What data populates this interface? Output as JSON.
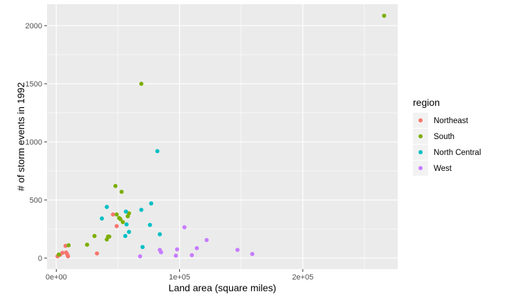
{
  "chart_data": {
    "type": "scatter",
    "xlabel": "Land area (square miles)",
    "ylabel": "# of storm events in 1992",
    "xlim": [
      -7500,
      277000
    ],
    "ylim": [
      -95,
      2185
    ],
    "x_ticks": [
      0,
      100000,
      200000
    ],
    "x_tick_labels": [
      "0e+00",
      "1e+05",
      "2e+05"
    ],
    "y_ticks": [
      0,
      500,
      1000,
      1500,
      2000
    ],
    "y_tick_labels": [
      "0",
      "500",
      "1000",
      "1500",
      "2000"
    ],
    "grid": true,
    "legend": {
      "title": "region",
      "position": "right",
      "entries": [
        "Northeast",
        "South",
        "North Central",
        "West"
      ]
    },
    "series": [
      {
        "name": "Northeast",
        "color": "#F8766D",
        "points": [
          [
            1000,
            15
          ],
          [
            3000,
            28
          ],
          [
            5000,
            45
          ],
          [
            7500,
            105
          ],
          [
            8000,
            48
          ],
          [
            9000,
            30
          ],
          [
            9500,
            15
          ],
          [
            33000,
            40
          ],
          [
            46000,
            375
          ],
          [
            49000,
            275
          ]
        ]
      },
      {
        "name": "South",
        "color": "#7CAE00",
        "points": [
          [
            2000,
            30
          ],
          [
            10000,
            110
          ],
          [
            25000,
            115
          ],
          [
            31000,
            190
          ],
          [
            41000,
            160
          ],
          [
            42000,
            185
          ],
          [
            43000,
            185
          ],
          [
            48000,
            620
          ],
          [
            49000,
            375
          ],
          [
            51000,
            345
          ],
          [
            52000,
            335
          ],
          [
            53000,
            570
          ],
          [
            54000,
            310
          ],
          [
            58000,
            360
          ],
          [
            59000,
            385
          ],
          [
            69000,
            1500
          ],
          [
            266000,
            2085
          ]
        ]
      },
      {
        "name": "North Central",
        "color": "#00BFC4",
        "points": [
          [
            37000,
            340
          ],
          [
            41000,
            440
          ],
          [
            56000,
            190
          ],
          [
            56500,
            400
          ],
          [
            57000,
            290
          ],
          [
            59000,
            225
          ],
          [
            69000,
            415
          ],
          [
            70000,
            95
          ],
          [
            76000,
            285
          ],
          [
            77000,
            470
          ],
          [
            82000,
            920
          ],
          [
            84000,
            205
          ]
        ]
      },
      {
        "name": "West",
        "color": "#C77CFF",
        "points": [
          [
            68000,
            15
          ],
          [
            84000,
            70
          ],
          [
            85000,
            50
          ],
          [
            97000,
            20
          ],
          [
            98000,
            75
          ],
          [
            104000,
            265
          ],
          [
            110000,
            25
          ],
          [
            114000,
            85
          ],
          [
            122000,
            155
          ],
          [
            147000,
            70
          ],
          [
            159000,
            35
          ]
        ]
      }
    ]
  }
}
